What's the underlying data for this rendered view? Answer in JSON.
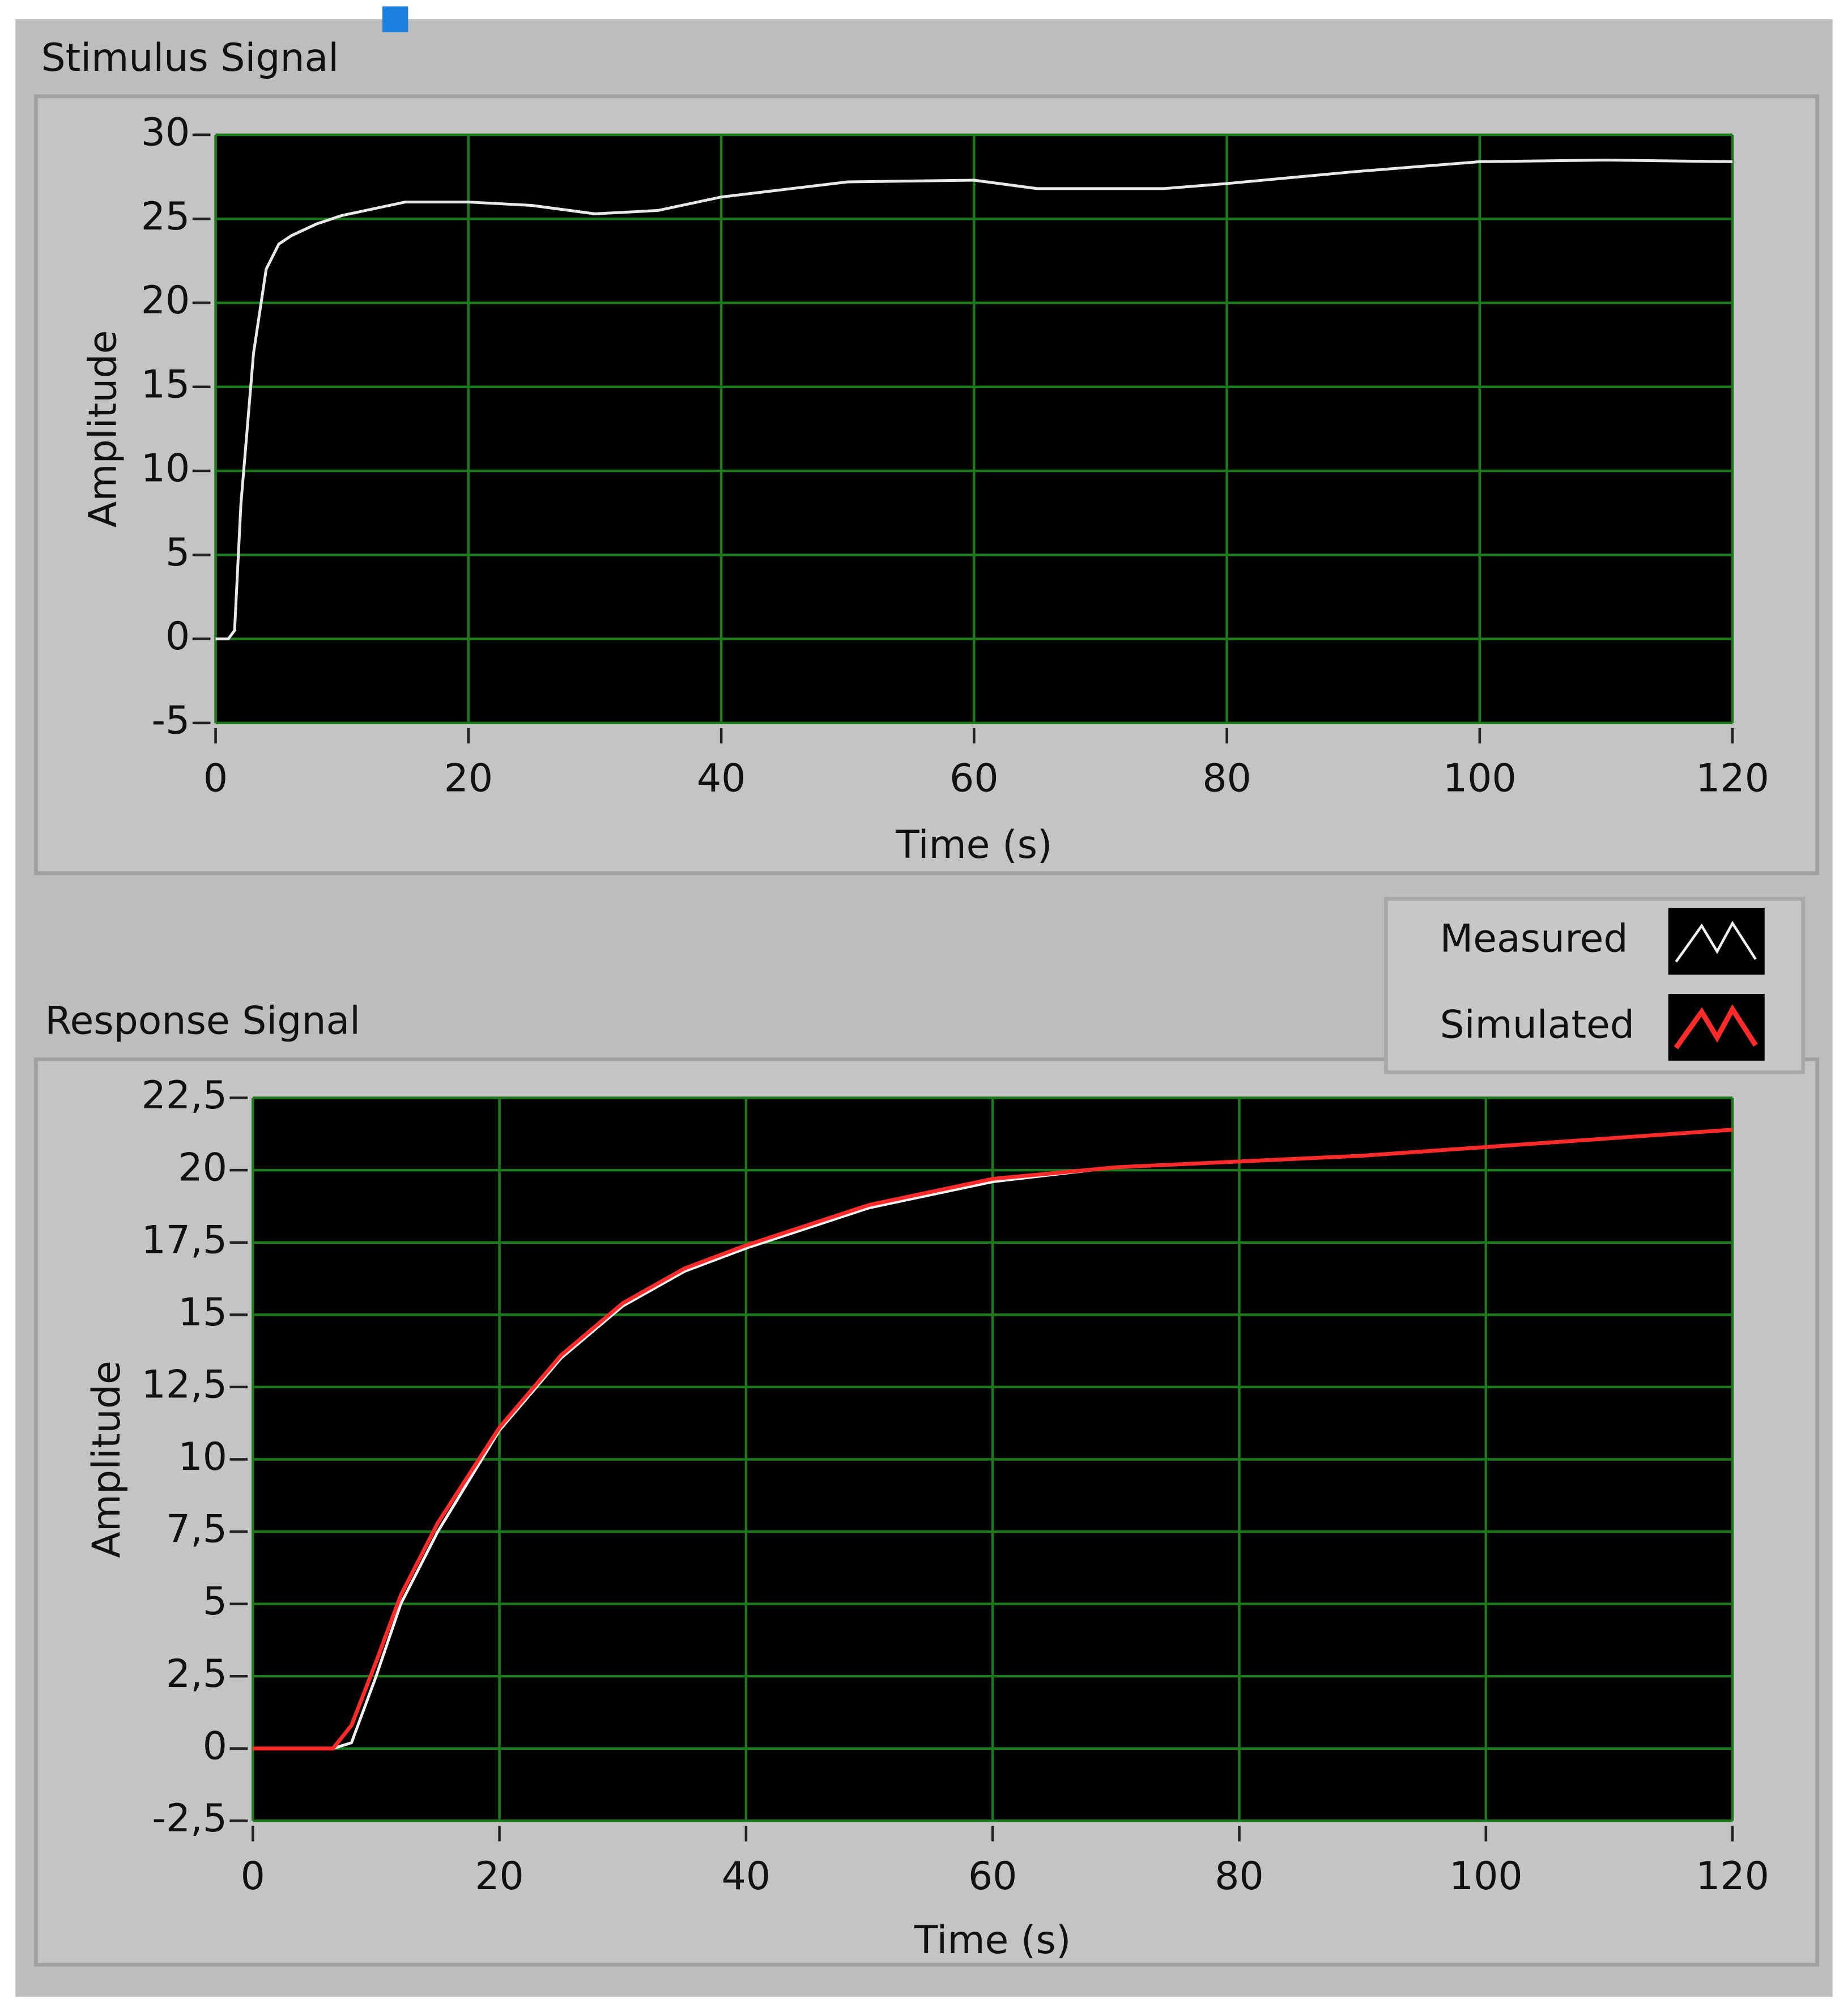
{
  "chart_data": [
    {
      "type": "line",
      "title": "Stimulus Signal",
      "x_label": "Time (s)",
      "y_label": "Amplitude",
      "x": [
        0,
        1,
        1.5,
        2,
        3,
        4,
        5,
        6,
        8,
        10,
        15,
        20,
        25,
        30,
        35,
        40,
        50,
        60,
        65,
        70,
        75,
        80,
        90,
        100,
        110,
        120
      ],
      "series": [
        {
          "color": "#e8e8e8",
          "values": [
            0,
            0,
            0.5,
            8,
            17,
            22,
            23.5,
            24,
            24.7,
            25.2,
            26,
            26,
            25.8,
            25.3,
            25.5,
            26.3,
            27.2,
            27.3,
            26.8,
            26.8,
            26.8,
            27.1,
            27.8,
            28.4,
            28.5,
            28.4
          ]
        }
      ],
      "xlim": [
        0,
        120
      ],
      "ylim": [
        -5,
        30
      ],
      "xticks": [
        0,
        20,
        40,
        60,
        80,
        100,
        120
      ],
      "yticks": [
        -5,
        0,
        5,
        10,
        15,
        20,
        25,
        30
      ],
      "grid": true
    },
    {
      "type": "line",
      "title": "Response Signal",
      "x_label": "Time (s)",
      "y_label": "Amplitude",
      "x": [
        0,
        5,
        6.5,
        8,
        10,
        12,
        15,
        20,
        25,
        30,
        35,
        40,
        50,
        60,
        70,
        80,
        90,
        100,
        110,
        120
      ],
      "series": [
        {
          "name": "Measured",
          "color": "#f2f2f2",
          "values": [
            0,
            0,
            0,
            0.2,
            2.5,
            5,
            7.5,
            11,
            13.5,
            15.3,
            16.5,
            17.3,
            18.7,
            19.6,
            20.1,
            20.3,
            20.5,
            20.8,
            21.1,
            21.4
          ]
        },
        {
          "name": "Simulated",
          "color": "#ff2a2a",
          "values": [
            0,
            0,
            0,
            0.8,
            3,
            5.3,
            7.8,
            11.1,
            13.6,
            15.4,
            16.6,
            17.4,
            18.8,
            19.7,
            20.1,
            20.3,
            20.5,
            20.8,
            21.1,
            21.4
          ]
        }
      ],
      "xlim": [
        0,
        120
      ],
      "ylim": [
        -2.5,
        22.5
      ],
      "xticks": [
        0,
        20,
        40,
        60,
        80,
        100,
        120
      ],
      "yticks": [
        {
          "value": -2.5,
          "label": "-2,5"
        },
        0,
        {
          "value": 2.5,
          "label": "2,5"
        },
        5,
        {
          "value": 7.5,
          "label": "7,5"
        },
        10,
        {
          "value": 12.5,
          "label": "12,5"
        },
        15,
        {
          "value": 17.5,
          "label": "17,5"
        },
        20,
        {
          "value": 22.5,
          "label": "22,5"
        }
      ],
      "grid": true,
      "legend": "top-right"
    }
  ]
}
